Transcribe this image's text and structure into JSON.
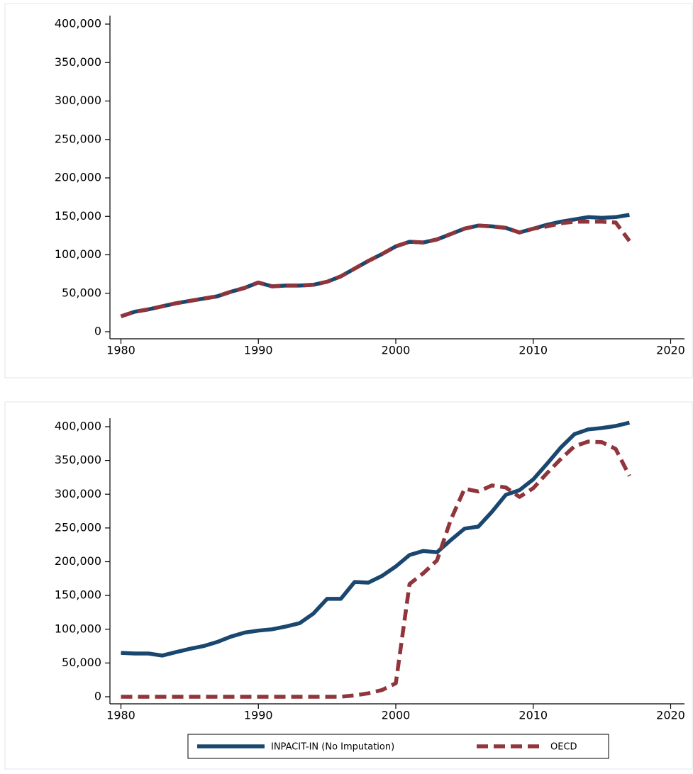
{
  "chart_data": [
    {
      "type": "line",
      "x": [
        1980,
        1981,
        1982,
        1983,
        1984,
        1985,
        1986,
        1987,
        1988,
        1989,
        1990,
        1991,
        1992,
        1993,
        1994,
        1995,
        1996,
        1997,
        1998,
        1999,
        2000,
        2001,
        2002,
        2003,
        2004,
        2005,
        2006,
        2007,
        2008,
        2009,
        2010,
        2011,
        2012,
        2013,
        2014,
        2015,
        2016,
        2017
      ],
      "series": [
        {
          "color": "#1a476f",
          "line_style": "solid",
          "values": [
            20000,
            26000,
            29000,
            33000,
            37000,
            40000,
            43000,
            46000,
            52000,
            57000,
            64000,
            59000,
            60000,
            60000,
            61000,
            65000,
            72000,
            82000,
            92000,
            101000,
            111000,
            117000,
            116000,
            120000,
            127000,
            134000,
            138000,
            137000,
            135000,
            129000,
            134000,
            139000,
            143000,
            146000,
            149000,
            148000,
            149000,
            152000
          ]
        },
        {
          "color": "#90353b",
          "line_style": "dashed",
          "values": [
            20000,
            26000,
            29000,
            33000,
            37000,
            40000,
            43000,
            46000,
            52000,
            57000,
            64000,
            59000,
            60000,
            60000,
            61000,
            65000,
            72000,
            82000,
            92000,
            101000,
            111000,
            117000,
            116000,
            120000,
            127000,
            134000,
            138000,
            137000,
            135000,
            129000,
            134000,
            137000,
            141000,
            143000,
            143000,
            143000,
            142000,
            118000
          ]
        }
      ],
      "xlim": [
        1979.2,
        2020.8
      ],
      "xticks": [
        1980,
        1990,
        2000,
        2010,
        2020
      ],
      "ylim": [
        0,
        400000
      ],
      "yticks": [
        0,
        {
          "value": 50000,
          "label": "50,000"
        },
        {
          "value": 100000,
          "label": "100,000"
        },
        {
          "value": 150000,
          "label": "150,000"
        },
        {
          "value": 200000,
          "label": "200,000"
        },
        {
          "value": 250000,
          "label": "250,000"
        },
        {
          "value": 300000,
          "label": "300,000"
        },
        {
          "value": 350000,
          "label": "350,000"
        },
        {
          "value": 400000,
          "label": "400,000"
        }
      ]
    },
    {
      "type": "line",
      "x": [
        1980,
        1981,
        1982,
        1983,
        1984,
        1985,
        1986,
        1987,
        1988,
        1989,
        1990,
        1991,
        1992,
        1993,
        1994,
        1995,
        1996,
        1997,
        1998,
        1999,
        2000,
        2001,
        2002,
        2003,
        2004,
        2005,
        2006,
        2007,
        2008,
        2009,
        2010,
        2011,
        2012,
        2013,
        2014,
        2015,
        2016,
        2017
      ],
      "series": [
        {
          "name": "INPACIT-IN (No Imputation)",
          "color": "#1a476f",
          "line_style": "solid",
          "values": [
            65000,
            64000,
            64000,
            61000,
            66000,
            71000,
            75000,
            81000,
            89000,
            95000,
            98000,
            100000,
            104000,
            109000,
            123000,
            145000,
            145000,
            170000,
            169000,
            179000,
            193000,
            210000,
            216000,
            214000,
            232000,
            249000,
            252000,
            274000,
            299000,
            306000,
            322000,
            345000,
            369000,
            389000,
            396000,
            398000,
            401000,
            406000
          ]
        },
        {
          "name": "OECD",
          "color": "#90353b",
          "line_style": "dashed",
          "values": [
            0,
            0,
            0,
            0,
            0,
            0,
            0,
            0,
            0,
            0,
            0,
            0,
            0,
            0,
            0,
            0,
            0,
            2000,
            5000,
            10000,
            20000,
            167000,
            183000,
            202000,
            262000,
            308000,
            304000,
            313000,
            310000,
            296000,
            309000,
            331000,
            352000,
            371000,
            378000,
            377000,
            367000,
            327000
          ]
        }
      ],
      "xlim": [
        1979.2,
        2020.8
      ],
      "xticks": [
        1980,
        1990,
        2000,
        2010,
        2020
      ],
      "ylim": [
        0,
        400000
      ],
      "yticks": [
        0,
        {
          "value": 50000,
          "label": "50,000"
        },
        {
          "value": 100000,
          "label": "100,000"
        },
        {
          "value": 150000,
          "label": "150,000"
        },
        {
          "value": 200000,
          "label": "200,000"
        },
        {
          "value": 250000,
          "label": "250,000"
        },
        {
          "value": 300000,
          "label": "300,000"
        },
        {
          "value": 350000,
          "label": "350,000"
        },
        {
          "value": 400000,
          "label": "400,000"
        }
      ]
    }
  ]
}
